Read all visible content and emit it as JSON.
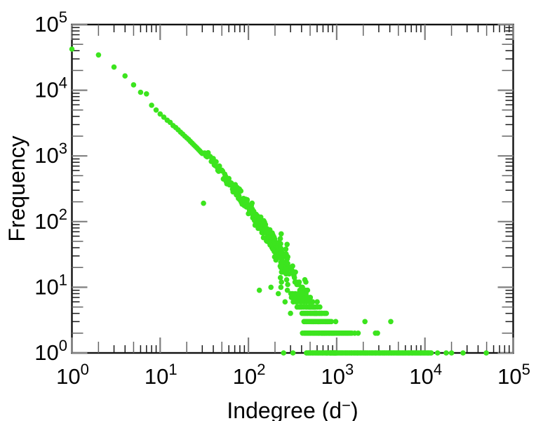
{
  "chart_data": {
    "type": "scatter",
    "xscale": "log",
    "yscale": "log",
    "xlim": [
      1,
      100000
    ],
    "ylim": [
      1,
      100000
    ],
    "xlabel": "Indegree (d⁻)",
    "ylabel": "Frequency",
    "xlabel_parts": {
      "prefix": "Indegree (d",
      "sup": "−",
      "suffix": ")"
    },
    "legend": "none",
    "grid": "off",
    "ticks": {
      "base": "10",
      "x_exponents": [
        0,
        1,
        2,
        3,
        4,
        5
      ],
      "y_exponents": [
        0,
        1,
        2,
        3,
        4,
        5
      ]
    },
    "colors": {
      "marker": "#3ce41e",
      "frame": "#111111",
      "major_tick": "#7f7f7f",
      "mid_tick": "#666666",
      "minor_tick": "#1c1c1c",
      "text": "#000000",
      "background": "#ffffff"
    },
    "marker_radius": 3.8,
    "points_exact": [
      [
        1,
        42300
      ],
      [
        2,
        34500
      ],
      [
        3,
        22500
      ],
      [
        4,
        16500
      ],
      [
        5,
        12100
      ],
      [
        6,
        9300
      ],
      [
        7,
        8800
      ],
      [
        8,
        5900
      ],
      [
        9,
        5000
      ],
      [
        10,
        4350
      ],
      [
        11,
        3900
      ],
      [
        12,
        3500
      ],
      [
        13,
        3240
      ],
      [
        14,
        2900
      ],
      [
        15,
        2700
      ],
      [
        16,
        2500
      ],
      [
        17,
        2300
      ],
      [
        18,
        2150
      ],
      [
        19,
        2000
      ],
      [
        20,
        1880
      ],
      [
        21,
        1780
      ],
      [
        22,
        1660
      ],
      [
        23,
        1570
      ],
      [
        24,
        1480
      ],
      [
        25,
        1400
      ],
      [
        26,
        1330
      ],
      [
        27,
        1260
      ],
      [
        28,
        1200
      ],
      [
        29,
        1140
      ],
      [
        30,
        1090
      ]
    ],
    "cloud": {
      "formula": {
        "a": 4.63,
        "b": -0.55,
        "c": -0.33
      },
      "d_min": 31,
      "d_max": 1000,
      "jitter_base": 0.02,
      "jitter_growth": 0.1,
      "jitter_pivot": 1.4
    },
    "bands": [
      {
        "f": 1,
        "d1": 450,
        "d2": 12000,
        "n": 150
      },
      {
        "f": 2,
        "d1": 430,
        "d2": 1450,
        "n": 55
      },
      {
        "f": 3,
        "d1": 420,
        "d2": 880,
        "n": 30
      },
      {
        "f": 4,
        "d1": 400,
        "d2": 780,
        "n": 20
      },
      {
        "f": 5,
        "d1": 350,
        "d2": 620,
        "n": 13
      },
      {
        "f": 6,
        "d1": 320,
        "d2": 560,
        "n": 10
      },
      {
        "f": 7,
        "d1": 300,
        "d2": 520,
        "n": 8
      },
      {
        "f": 8,
        "d1": 290,
        "d2": 480,
        "n": 7
      }
    ],
    "spikes": [
      {
        "d": 235,
        "fs": [
          10,
          12,
          14,
          17,
          20,
          24,
          28,
          33,
          39,
          46,
          55,
          65
        ]
      },
      {
        "d": 272,
        "fs": [
          9,
          11,
          13,
          16,
          19,
          23,
          27,
          32,
          38,
          45
        ]
      }
    ],
    "extra_points": [
      [
        250,
        1
      ],
      [
        320,
        1
      ],
      [
        13900,
        1
      ],
      [
        17400,
        1
      ],
      [
        20000,
        1
      ],
      [
        27000,
        1
      ],
      [
        49500,
        1
      ],
      [
        1600,
        2
      ],
      [
        1750,
        2
      ],
      [
        2750,
        2
      ],
      [
        2900,
        2
      ],
      [
        1480,
        2
      ],
      [
        975,
        3
      ],
      [
        2090,
        3
      ],
      [
        4100,
        3
      ],
      [
        133,
        9
      ],
      [
        180,
        10
      ],
      [
        218,
        8
      ],
      [
        31,
        190
      ],
      [
        260,
        6
      ],
      [
        300,
        4
      ],
      [
        410,
        2
      ],
      [
        430,
        2
      ]
    ]
  }
}
